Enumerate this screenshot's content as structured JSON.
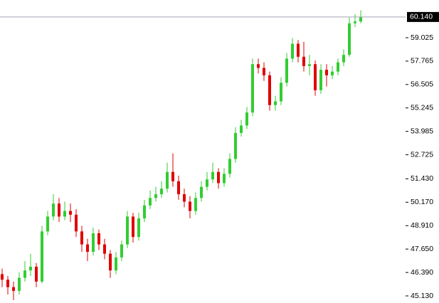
{
  "chart_data": {
    "type": "candlestick",
    "open": [
      46.3,
      46.0,
      45.6,
      45.4,
      46.1,
      46.5,
      46.7,
      45.9,
      48.6,
      49.4,
      50.1,
      49.4,
      49.7,
      49.5,
      48.6,
      47.9,
      47.5,
      48.5,
      47.9,
      47.4,
      46.5,
      47.2,
      47.9,
      49.4,
      48.3,
      49.3,
      50.0,
      50.4,
      50.6,
      50.9,
      51.8,
      51.3,
      50.6,
      50.2,
      49.7,
      50.4,
      51.0,
      51.4,
      51.8,
      51.2,
      51.7,
      52.5,
      53.9,
      54.3,
      55.0,
      57.6,
      57.4,
      57.0,
      55.4,
      55.6,
      56.6,
      57.9,
      58.7,
      58.0,
      57.5,
      57.6,
      56.2,
      57.3,
      57.0,
      57.2,
      57.7,
      58.1,
      59.8,
      59.9
    ],
    "high": [
      46.6,
      46.2,
      45.9,
      46.4,
      47.0,
      47.4,
      46.9,
      48.9,
      49.7,
      50.6,
      50.4,
      50.2,
      50.1,
      49.8,
      48.9,
      48.2,
      48.8,
      48.7,
      48.2,
      47.6,
      47.5,
      48.1,
      49.7,
      49.6,
      49.6,
      50.3,
      50.8,
      51.0,
      51.3,
      52.3,
      52.8,
      51.6,
      50.9,
      50.5,
      50.7,
      51.3,
      51.8,
      52.3,
      52.0,
      52.0,
      52.8,
      54.2,
      54.6,
      55.3,
      57.9,
      57.9,
      57.7,
      57.2,
      55.9,
      56.9,
      58.2,
      59.0,
      58.9,
      58.8,
      58.1,
      57.8,
      57.6,
      57.6,
      57.5,
      57.9,
      58.4,
      60.1,
      60.3,
      60.5
    ],
    "low": [
      45.6,
      45.2,
      44.9,
      45.2,
      45.9,
      46.2,
      45.6,
      45.8,
      48.4,
      49.2,
      49.1,
      49.2,
      49.1,
      48.3,
      47.5,
      47.0,
      47.3,
      47.6,
      47.1,
      46.1,
      46.3,
      47.0,
      47.7,
      48.0,
      48.1,
      49.1,
      49.8,
      50.2,
      50.4,
      50.7,
      51.0,
      50.3,
      49.9,
      49.3,
      49.5,
      50.2,
      50.8,
      51.2,
      50.9,
      51.0,
      51.5,
      52.3,
      53.7,
      54.1,
      54.8,
      57.1,
      56.7,
      55.1,
      55.1,
      55.4,
      56.4,
      57.7,
      57.7,
      57.2,
      57.0,
      55.9,
      56.0,
      56.4,
      56.8,
      57.0,
      57.5,
      58.0,
      59.6,
      59.8
    ],
    "close": [
      46.0,
      45.6,
      45.4,
      46.1,
      46.5,
      46.7,
      45.9,
      48.6,
      49.4,
      50.1,
      49.4,
      49.7,
      49.5,
      48.6,
      47.9,
      47.5,
      48.5,
      47.9,
      47.4,
      46.5,
      47.2,
      47.9,
      49.4,
      48.3,
      49.3,
      50.0,
      50.4,
      50.6,
      50.9,
      51.8,
      51.3,
      50.6,
      50.2,
      49.7,
      50.4,
      51.0,
      51.4,
      51.8,
      51.2,
      51.7,
      52.5,
      53.9,
      54.3,
      55.0,
      57.6,
      57.4,
      57.0,
      55.4,
      55.6,
      56.6,
      57.9,
      58.7,
      58.0,
      57.5,
      57.6,
      56.2,
      57.3,
      57.0,
      57.2,
      57.7,
      58.1,
      59.8,
      59.9,
      60.14
    ],
    "up_color": "#32cd32",
    "down_color": "#e00000",
    "ylim": [
      44.747,
      61.054
    ],
    "yticks": [
      {
        "value": 45.13,
        "label": "45.130"
      },
      {
        "value": 46.39,
        "label": "46.390"
      },
      {
        "value": 47.65,
        "label": "47.650"
      },
      {
        "value": 48.91,
        "label": "48.910"
      },
      {
        "value": 50.17,
        "label": "50.170"
      },
      {
        "value": 51.43,
        "label": "51.430"
      },
      {
        "value": 52.725,
        "label": "52.725"
      },
      {
        "value": 53.985,
        "label": "53.985"
      },
      {
        "value": 55.245,
        "label": "55.245"
      },
      {
        "value": 56.505,
        "label": "56.505"
      },
      {
        "value": 57.765,
        "label": "57.765"
      },
      {
        "value": 59.025,
        "label": "59.025"
      }
    ],
    "current_price": {
      "value": 60.14,
      "label": "60.140"
    }
  }
}
